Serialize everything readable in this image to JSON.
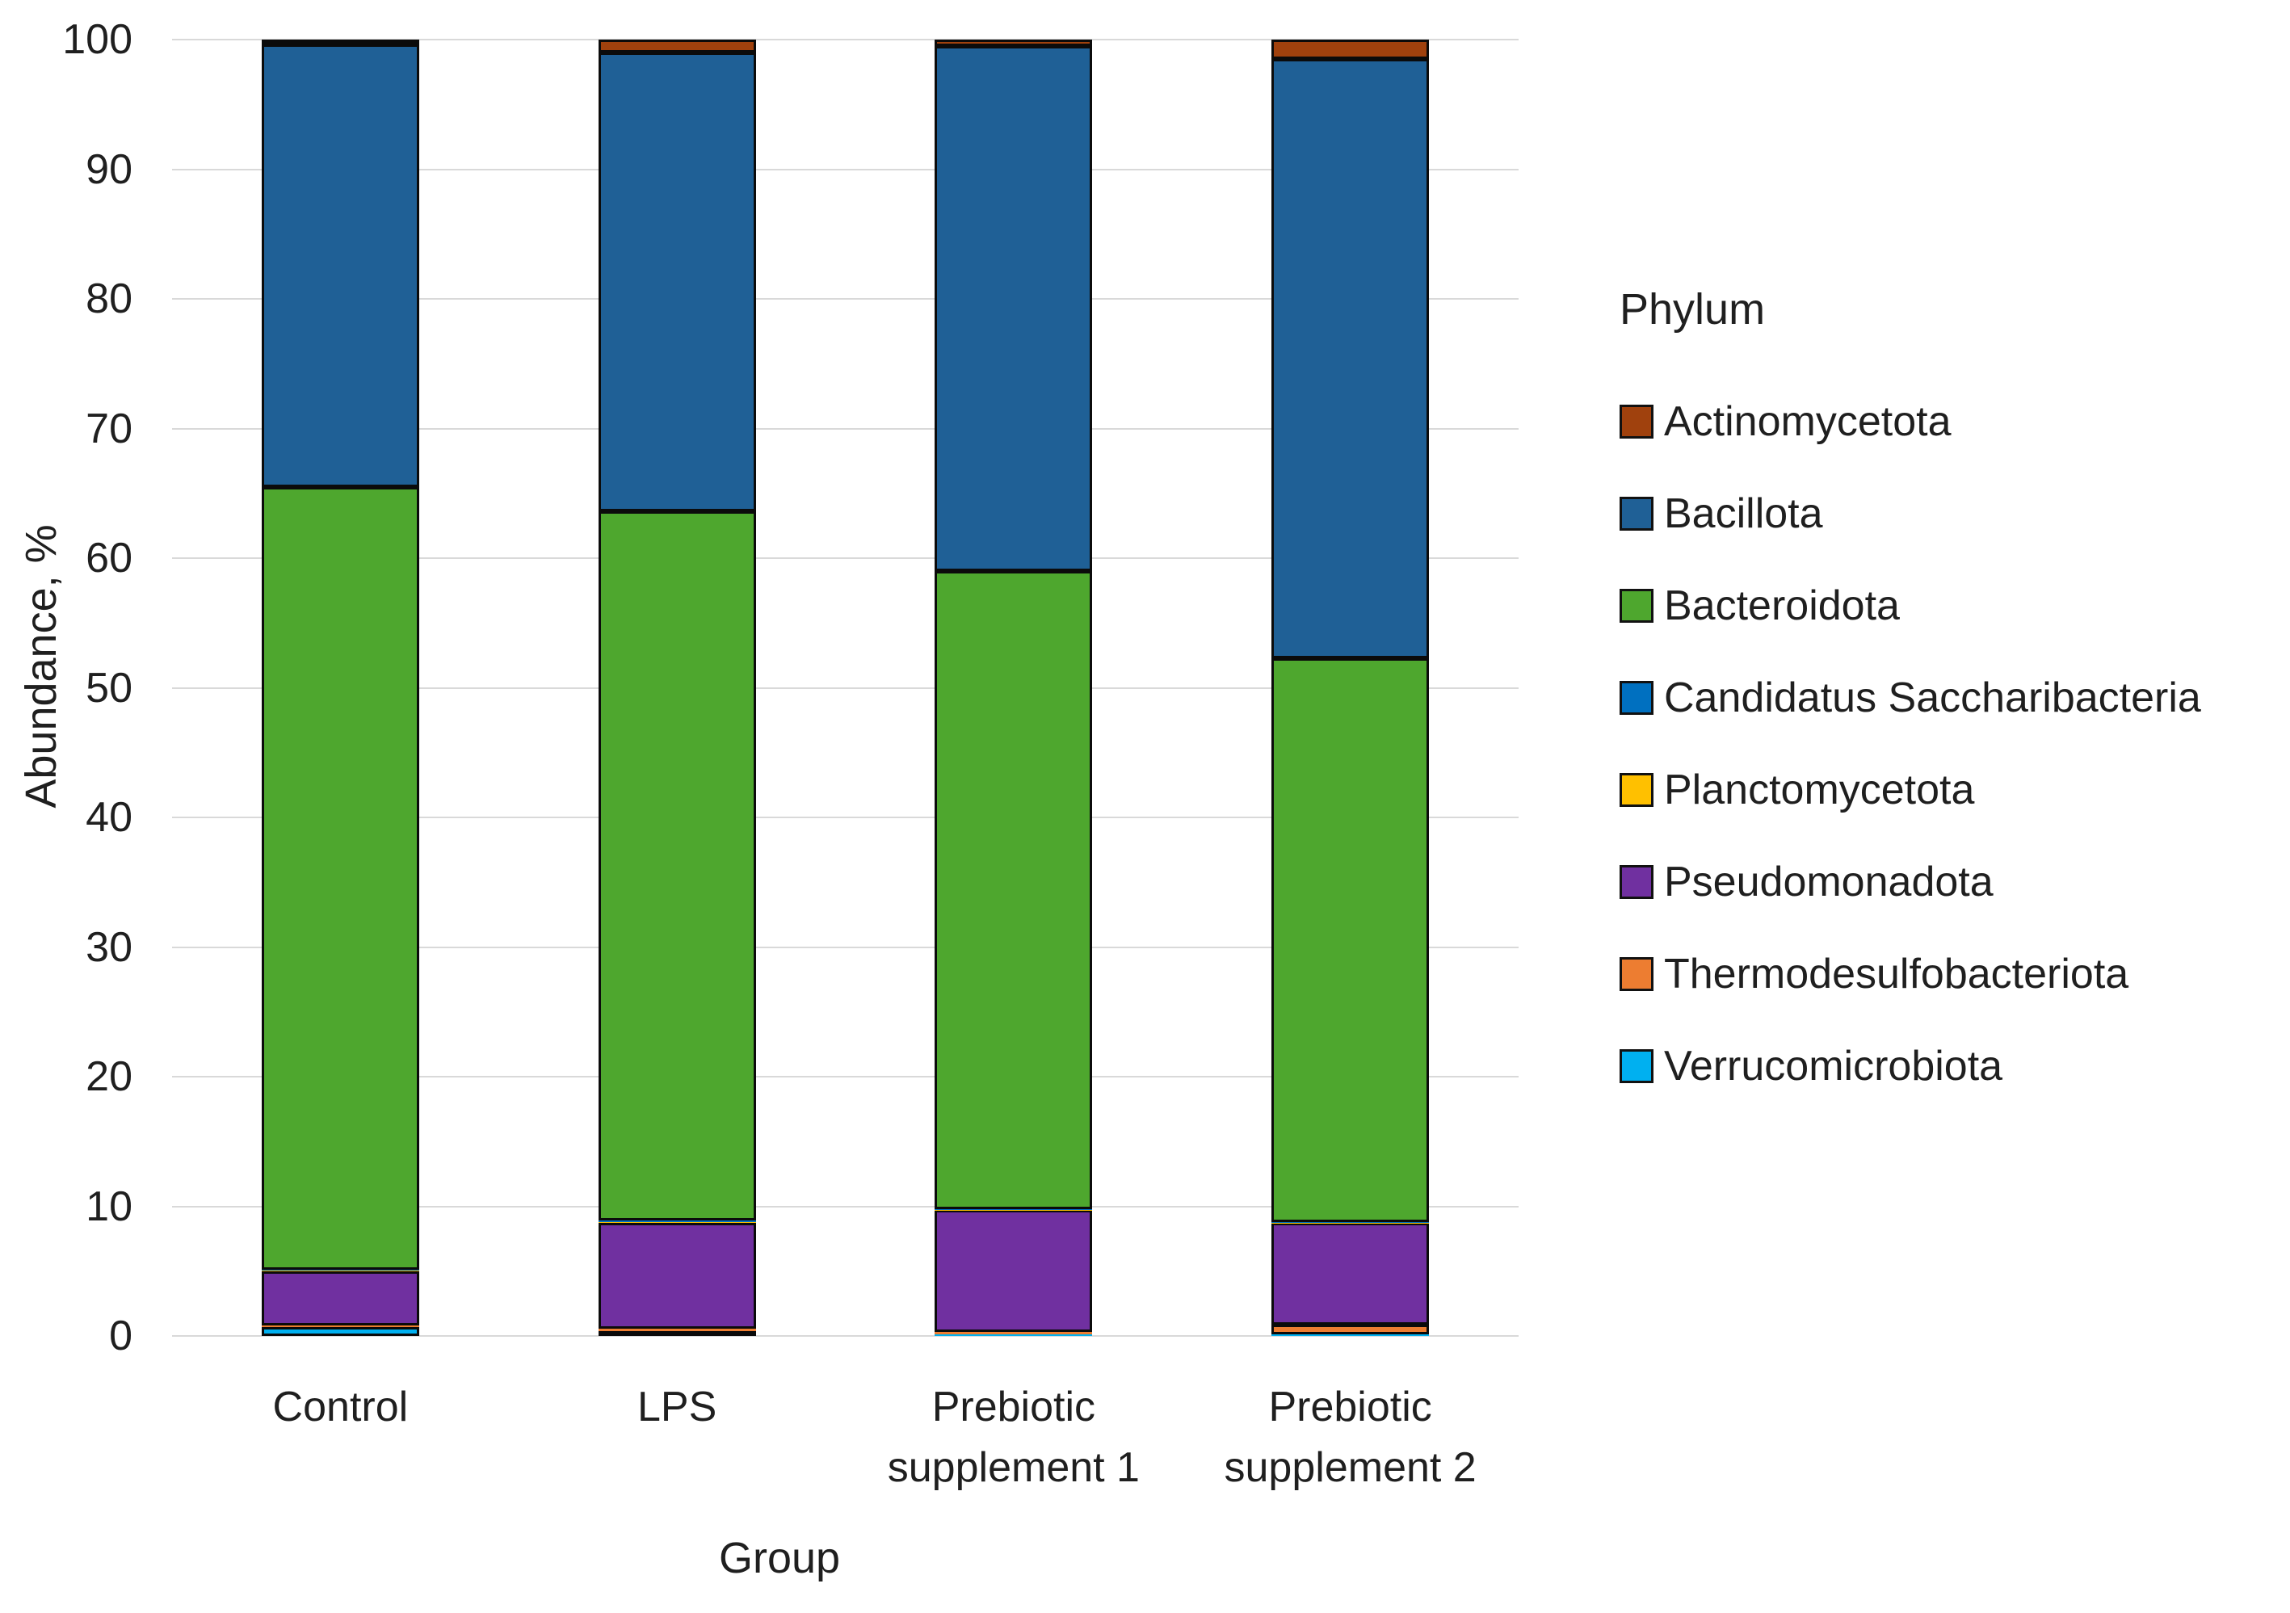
{
  "chart_data": {
    "type": "bar",
    "stacked": true,
    "title": "",
    "xlabel": "Group",
    "ylabel": "Abundance, %",
    "legend_title": "Phylum",
    "legend_position": "right",
    "grid": true,
    "ylim": [
      0,
      100
    ],
    "ytick_interval": 10,
    "categories": [
      "Control",
      "LPS",
      "Prebiotic supplement 1",
      "Prebiotic supplement 2"
    ],
    "series": [
      {
        "name": "Verrucomicrobiota",
        "color": "#00B0F0",
        "values": [
          0.7,
          0.4,
          0.15,
          0.1
        ]
      },
      {
        "name": "Thermodesulfobacteriota",
        "color": "#ED7D31",
        "values": [
          0.1,
          0.15,
          0.15,
          0.8
        ]
      },
      {
        "name": "Pseudomonadota",
        "color": "#7030A0",
        "values": [
          4.2,
          8.2,
          9.4,
          7.8
        ]
      },
      {
        "name": "Planctomycetota",
        "color": "#FFC000",
        "values": [
          0.05,
          0.05,
          0.05,
          0.05
        ]
      },
      {
        "name": "Candidatus Saccharibacteria",
        "color": "#0070C0",
        "values": [
          0.05,
          0.1,
          0.05,
          0.05
        ]
      },
      {
        "name": "Bacteroidota",
        "color": "#4EA72E",
        "values": [
          60.4,
          54.7,
          49.2,
          43.5
        ]
      },
      {
        "name": "Bacillota",
        "color": "#1F6096",
        "values": [
          34.1,
          35.4,
          40.5,
          46.2
        ]
      },
      {
        "name": "Actinomycetota",
        "color": "#A0410D",
        "values": [
          0.4,
          1.0,
          0.5,
          1.5
        ]
      }
    ],
    "legend": [
      "Actinomycetota",
      "Bacillota",
      "Bacteroidota",
      "Candidatus Saccharibacteria",
      "Planctomycetota",
      "Pseudomonadota",
      "Thermodesulfobacteriota",
      "Verrucomicrobiota"
    ]
  }
}
